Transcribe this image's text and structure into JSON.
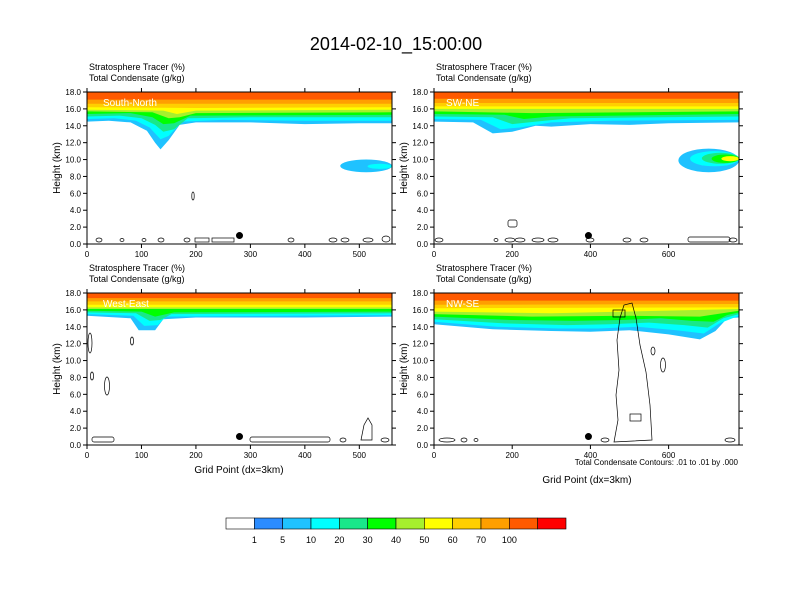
{
  "title": "2014-02-10_15:00:00",
  "panel_header_line1": "Stratosphere Tracer   (%)",
  "panel_header_line2": "Total Condensate   (g/kg)",
  "ylabel": "Height (km)",
  "xlabel": "Grid Point (dx=3km)",
  "contour_note": "Total Condensate Contours: .01 to .01 by .000",
  "colors": {
    "frame": "#000000",
    "label_text": "#ffffff",
    "marker": "#000000"
  },
  "colorbar": {
    "levels": [
      "1",
      "5",
      "10",
      "20",
      "30",
      "40",
      "50",
      "60",
      "70",
      "100"
    ],
    "colors": [
      "#ffffff",
      "#2b8cff",
      "#1fc2ff",
      "#00ffff",
      "#19e88a",
      "#00ff00",
      "#a6f02e",
      "#ffff00",
      "#ffcf00",
      "#ff9f00",
      "#ff5a00",
      "#ff0000"
    ]
  },
  "chart_data": [
    {
      "type": "heatmap",
      "name": "South-North",
      "xlim": [
        0,
        560
      ],
      "ylim": [
        0,
        18
      ],
      "xticks": [
        0,
        100,
        200,
        300,
        400,
        500
      ],
      "yticks": [
        "0.0",
        "2.0",
        "4.0",
        "6.0",
        "8.0",
        "10.0",
        "12.0",
        "14.0",
        "16.0",
        "18.0"
      ],
      "marker": {
        "x": 280,
        "y": 1.0
      },
      "layers": [
        {
          "level": 5,
          "profile": [
            [
              0,
              14.5
            ],
            [
              40,
              14.6
            ],
            [
              80,
              14.4
            ],
            [
              110,
              13.4
            ],
            [
              125,
              12.0
            ],
            [
              135,
              11.2
            ],
            [
              150,
              12.3
            ],
            [
              170,
              14.1
            ],
            [
              200,
              14.4
            ],
            [
              300,
              14.4
            ],
            [
              400,
              14.2
            ],
            [
              500,
              14.3
            ],
            [
              560,
              14.3
            ]
          ]
        },
        {
          "level": 10,
          "profile": [
            [
              0,
              14.8
            ],
            [
              50,
              14.9
            ],
            [
              90,
              14.6
            ],
            [
              115,
              13.8
            ],
            [
              135,
              12.4
            ],
            [
              150,
              12.8
            ],
            [
              175,
              14.5
            ],
            [
              250,
              14.7
            ],
            [
              400,
              14.6
            ],
            [
              560,
              14.6
            ]
          ]
        },
        {
          "level": 20,
          "profile": [
            [
              0,
              15.1
            ],
            [
              60,
              15.2
            ],
            [
              100,
              14.9
            ],
            [
              125,
              14.1
            ],
            [
              140,
              13.3
            ],
            [
              160,
              13.6
            ],
            [
              185,
              14.9
            ],
            [
              300,
              15.0
            ],
            [
              560,
              15.0
            ]
          ]
        },
        {
          "level": 30,
          "profile": [
            [
              0,
              15.4
            ],
            [
              80,
              15.5
            ],
            [
              120,
              15.0
            ],
            [
              140,
              14.2
            ],
            [
              160,
              14.3
            ],
            [
              190,
              15.2
            ],
            [
              560,
              15.3
            ]
          ]
        },
        {
          "level": 40,
          "profile": [
            [
              0,
              15.7
            ],
            [
              120,
              15.6
            ],
            [
              150,
              14.9
            ],
            [
              170,
              15.0
            ],
            [
              200,
              15.5
            ],
            [
              560,
              15.6
            ]
          ]
        },
        {
          "level": 50,
          "profile": [
            [
              0,
              15.9
            ],
            [
              140,
              15.8
            ],
            [
              165,
              15.4
            ],
            [
              200,
              15.8
            ],
            [
              560,
              15.9
            ]
          ]
        },
        {
          "level": 60,
          "profile": [
            [
              0,
              16.2
            ],
            [
              200,
              16.1
            ],
            [
              560,
              16.2
            ]
          ]
        },
        {
          "level": 70,
          "profile": [
            [
              0,
              16.6
            ],
            [
              560,
              16.6
            ]
          ]
        },
        {
          "level": 100,
          "profile": [
            [
              0,
              17.1
            ],
            [
              560,
              17.1
            ]
          ]
        }
      ],
      "blobs": [
        {
          "level": 5,
          "x": [
            465,
            560
          ],
          "y": [
            8.5,
            10.0
          ]
        },
        {
          "level": 10,
          "x": [
            515,
            560
          ],
          "y": [
            8.9,
            9.5
          ]
        }
      ]
    },
    {
      "type": "heatmap",
      "name": "SW-NE",
      "xlim": [
        0,
        780
      ],
      "ylim": [
        0,
        18
      ],
      "xticks": [
        0,
        200,
        400,
        600
      ],
      "yticks": [
        "0.0",
        "2.0",
        "4.0",
        "6.0",
        "8.0",
        "10.0",
        "12.0",
        "14.0",
        "16.0",
        "18.0"
      ],
      "marker": {
        "x": 395,
        "y": 1.0
      },
      "layers": [
        {
          "level": 5,
          "profile": [
            [
              0,
              14.5
            ],
            [
              100,
              14.4
            ],
            [
              150,
              13.1
            ],
            [
              200,
              13.3
            ],
            [
              260,
              14.0
            ],
            [
              300,
              13.9
            ],
            [
              400,
              14.2
            ],
            [
              500,
              14.1
            ],
            [
              600,
              14.3
            ],
            [
              780,
              14.4
            ]
          ]
        },
        {
          "level": 10,
          "profile": [
            [
              0,
              14.8
            ],
            [
              120,
              14.7
            ],
            [
              170,
              13.6
            ],
            [
              220,
              13.8
            ],
            [
              300,
              14.4
            ],
            [
              450,
              14.6
            ],
            [
              780,
              14.7
            ]
          ]
        },
        {
          "level": 20,
          "profile": [
            [
              0,
              15.1
            ],
            [
              150,
              15.0
            ],
            [
              200,
              14.2
            ],
            [
              260,
              14.5
            ],
            [
              350,
              14.9
            ],
            [
              780,
              15.1
            ]
          ]
        },
        {
          "level": 30,
          "profile": [
            [
              0,
              15.4
            ],
            [
              180,
              15.3
            ],
            [
              230,
              14.8
            ],
            [
              300,
              15.1
            ],
            [
              780,
              15.4
            ]
          ]
        },
        {
          "level": 40,
          "profile": [
            [
              0,
              15.7
            ],
            [
              250,
              15.5
            ],
            [
              780,
              15.7
            ]
          ]
        },
        {
          "level": 50,
          "profile": [
            [
              0,
              16.0
            ],
            [
              780,
              16.0
            ]
          ]
        },
        {
          "level": 60,
          "profile": [
            [
              0,
              16.3
            ],
            [
              780,
              16.3
            ]
          ]
        },
        {
          "level": 70,
          "profile": [
            [
              0,
              16.7
            ],
            [
              780,
              16.7
            ]
          ]
        },
        {
          "level": 100,
          "profile": [
            [
              0,
              17.2
            ],
            [
              780,
              17.2
            ]
          ]
        }
      ],
      "blobs": [
        {
          "level": 5,
          "x": [
            625,
            780
          ],
          "y": [
            8.5,
            11.3
          ]
        },
        {
          "level": 10,
          "x": [
            655,
            780
          ],
          "y": [
            9.2,
            11.0
          ]
        },
        {
          "level": 20,
          "x": [
            685,
            780
          ],
          "y": [
            9.5,
            10.8
          ]
        },
        {
          "level": 30,
          "x": [
            710,
            780
          ],
          "y": [
            9.6,
            10.6
          ]
        },
        {
          "level": 50,
          "x": [
            735,
            780
          ],
          "y": [
            9.8,
            10.4
          ]
        }
      ]
    },
    {
      "type": "heatmap",
      "name": "West-East",
      "xlim": [
        0,
        560
      ],
      "ylim": [
        0,
        18
      ],
      "xticks": [
        0,
        100,
        200,
        300,
        400,
        500
      ],
      "yticks": [
        "0.0",
        "2.0",
        "4.0",
        "6.0",
        "8.0",
        "10.0",
        "12.0",
        "14.0",
        "16.0",
        "18.0"
      ],
      "marker": {
        "x": 280,
        "y": 1.0
      },
      "layers": [
        {
          "level": 5,
          "profile": [
            [
              0,
              15.3
            ],
            [
              80,
              15.0
            ],
            [
              95,
              13.6
            ],
            [
              125,
              13.6
            ],
            [
              140,
              14.9
            ],
            [
              200,
              15.1
            ],
            [
              400,
              15.1
            ],
            [
              560,
              15.2
            ]
          ]
        },
        {
          "level": 10,
          "profile": [
            [
              0,
              15.5
            ],
            [
              85,
              15.3
            ],
            [
              105,
              14.1
            ],
            [
              130,
              14.2
            ],
            [
              145,
              15.2
            ],
            [
              560,
              15.4
            ]
          ]
        },
        {
          "level": 20,
          "profile": [
            [
              0,
              15.7
            ],
            [
              90,
              15.6
            ],
            [
              115,
              14.7
            ],
            [
              135,
              14.8
            ],
            [
              155,
              15.5
            ],
            [
              560,
              15.6
            ]
          ]
        },
        {
          "level": 30,
          "profile": [
            [
              0,
              15.9
            ],
            [
              100,
              15.8
            ],
            [
              125,
              15.2
            ],
            [
              160,
              15.7
            ],
            [
              560,
              15.8
            ]
          ]
        },
        {
          "level": 40,
          "profile": [
            [
              0,
              16.1
            ],
            [
              560,
              16.1
            ]
          ]
        },
        {
          "level": 50,
          "profile": [
            [
              0,
              16.3
            ],
            [
              560,
              16.3
            ]
          ]
        },
        {
          "level": 60,
          "profile": [
            [
              0,
              16.6
            ],
            [
              560,
              16.6
            ]
          ]
        },
        {
          "level": 70,
          "profile": [
            [
              0,
              17.0
            ],
            [
              560,
              17.0
            ]
          ]
        },
        {
          "level": 100,
          "profile": [
            [
              0,
              17.4
            ],
            [
              560,
              17.4
            ]
          ]
        }
      ],
      "blobs": []
    },
    {
      "type": "heatmap",
      "name": "NW-SE",
      "xlim": [
        0,
        780
      ],
      "ylim": [
        0,
        18
      ],
      "xticks": [
        0,
        200,
        400,
        600
      ],
      "yticks": [
        "0.0",
        "2.0",
        "4.0",
        "6.0",
        "8.0",
        "10.0",
        "12.0",
        "14.0",
        "16.0",
        "18.0"
      ],
      "marker": {
        "x": 395,
        "y": 1.0
      },
      "layers": [
        {
          "level": 5,
          "profile": [
            [
              0,
              14.3
            ],
            [
              150,
              13.7
            ],
            [
              300,
              13.5
            ],
            [
              400,
              13.4
            ],
            [
              500,
              13.6
            ],
            [
              600,
              13.1
            ],
            [
              680,
              12.5
            ],
            [
              720,
              13.5
            ],
            [
              750,
              15.0
            ],
            [
              780,
              15.1
            ]
          ]
        },
        {
          "level": 10,
          "profile": [
            [
              0,
              14.6
            ],
            [
              160,
              14.0
            ],
            [
              320,
              13.8
            ],
            [
              420,
              13.8
            ],
            [
              520,
              14.0
            ],
            [
              620,
              13.6
            ],
            [
              690,
              13.2
            ],
            [
              730,
              14.4
            ],
            [
              780,
              15.3
            ]
          ]
        },
        {
          "level": 20,
          "profile": [
            [
              0,
              14.9
            ],
            [
              180,
              14.4
            ],
            [
              340,
              14.2
            ],
            [
              450,
              14.3
            ],
            [
              550,
              14.5
            ],
            [
              640,
              14.2
            ],
            [
              700,
              13.9
            ],
            [
              740,
              15.0
            ],
            [
              780,
              15.5
            ]
          ]
        },
        {
          "level": 30,
          "profile": [
            [
              0,
              15.2
            ],
            [
              200,
              14.8
            ],
            [
              360,
              14.7
            ],
            [
              480,
              14.8
            ],
            [
              580,
              15.0
            ],
            [
              660,
              14.7
            ],
            [
              715,
              14.6
            ],
            [
              750,
              15.4
            ],
            [
              780,
              15.7
            ]
          ]
        },
        {
          "level": 40,
          "profile": [
            [
              0,
              15.5
            ],
            [
              250,
              15.2
            ],
            [
              500,
              15.3
            ],
            [
              680,
              15.2
            ],
            [
              780,
              15.9
            ]
          ]
        },
        {
          "level": 50,
          "profile": [
            [
              0,
              15.8
            ],
            [
              300,
              15.6
            ],
            [
              780,
              16.1
            ]
          ]
        },
        {
          "level": 60,
          "profile": [
            [
              0,
              16.2
            ],
            [
              780,
              16.3
            ]
          ]
        },
        {
          "level": 70,
          "profile": [
            [
              0,
              16.6
            ],
            [
              780,
              16.7
            ]
          ]
        },
        {
          "level": 100,
          "profile": [
            [
              0,
              17.1
            ],
            [
              780,
              17.1
            ]
          ]
        }
      ],
      "blobs": []
    }
  ]
}
